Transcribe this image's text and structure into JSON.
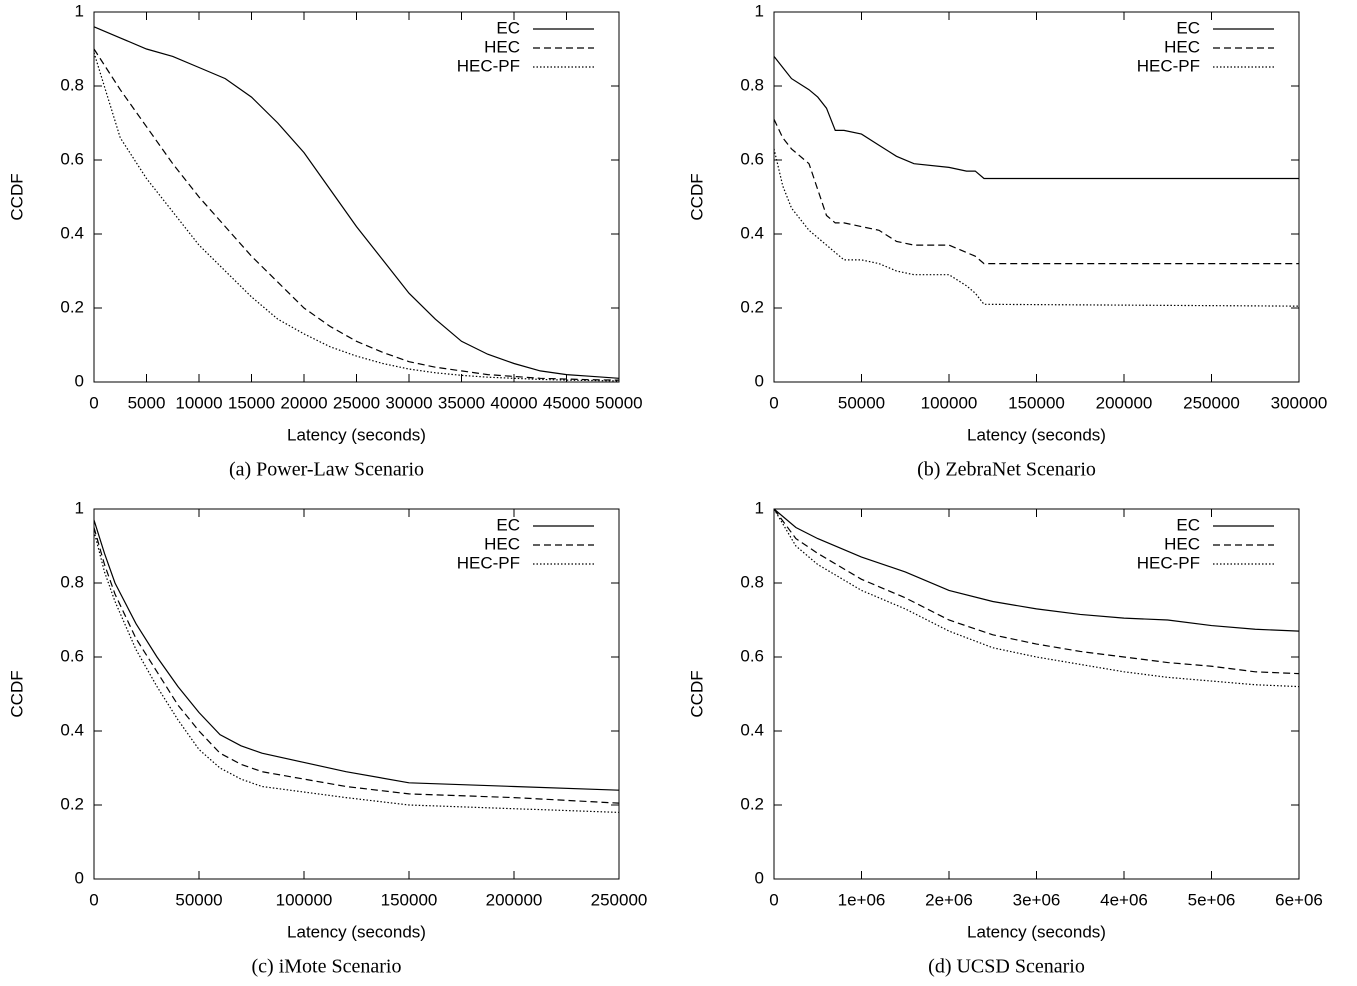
{
  "chart_data": [
    {
      "type": "line",
      "caption": "(a) Power-Law Scenario",
      "xlabel": "Latency (seconds)",
      "ylabel": "CCDF",
      "x": [
        0,
        2500,
        5000,
        7500,
        10000,
        12500,
        15000,
        17500,
        20000,
        22500,
        25000,
        27500,
        30000,
        32500,
        35000,
        37500,
        40000,
        42500,
        45000,
        47500,
        50000
      ],
      "series": [
        {
          "name": "EC",
          "color": "#000000",
          "dash": "solid",
          "values": [
            0.96,
            0.93,
            0.9,
            0.88,
            0.85,
            0.82,
            0.77,
            0.7,
            0.62,
            0.52,
            0.42,
            0.33,
            0.24,
            0.17,
            0.11,
            0.075,
            0.05,
            0.03,
            0.02,
            0.015,
            0.01
          ]
        },
        {
          "name": "HEC",
          "color": "#000000",
          "dash": "dashed",
          "values": [
            0.9,
            0.79,
            0.69,
            0.59,
            0.5,
            0.42,
            0.34,
            0.27,
            0.2,
            0.15,
            0.11,
            0.08,
            0.055,
            0.04,
            0.03,
            0.02,
            0.015,
            0.01,
            0.008,
            0.006,
            0.005
          ]
        },
        {
          "name": "HEC-PF",
          "color": "#000000",
          "dash": "dotted",
          "values": [
            0.89,
            0.66,
            0.55,
            0.46,
            0.37,
            0.3,
            0.23,
            0.17,
            0.13,
            0.095,
            0.07,
            0.05,
            0.035,
            0.025,
            0.018,
            0.013,
            0.01,
            0.007,
            0.005,
            0.004,
            0.003
          ]
        }
      ],
      "xlim": [
        0,
        50000
      ],
      "xticks": [
        0,
        5000,
        10000,
        15000,
        20000,
        25000,
        30000,
        35000,
        40000,
        45000,
        50000
      ],
      "ylim": [
        0,
        1
      ],
      "yticks": [
        0,
        0.2,
        0.4,
        0.6,
        0.8,
        1
      ],
      "legend": "upper right"
    },
    {
      "type": "line",
      "caption": "(b) ZebraNet Scenario",
      "xlabel": "Latency (seconds)",
      "ylabel": "CCDF",
      "x": [
        0,
        5000,
        10000,
        20000,
        25000,
        30000,
        35000,
        40000,
        50000,
        60000,
        70000,
        80000,
        100000,
        110000,
        115000,
        120000,
        300000
      ],
      "series": [
        {
          "name": "EC",
          "color": "#000000",
          "dash": "solid",
          "values": [
            0.88,
            0.85,
            0.82,
            0.79,
            0.77,
            0.74,
            0.68,
            0.68,
            0.67,
            0.64,
            0.61,
            0.59,
            0.58,
            0.57,
            0.57,
            0.55,
            0.55
          ]
        },
        {
          "name": "HEC",
          "color": "#000000",
          "dash": "dashed",
          "values": [
            0.71,
            0.66,
            0.63,
            0.59,
            0.52,
            0.45,
            0.43,
            0.43,
            0.42,
            0.41,
            0.38,
            0.37,
            0.37,
            0.35,
            0.34,
            0.32,
            0.32
          ]
        },
        {
          "name": "HEC-PF",
          "color": "#000000",
          "dash": "dotted",
          "values": [
            0.63,
            0.53,
            0.47,
            0.41,
            0.39,
            0.37,
            0.35,
            0.33,
            0.33,
            0.32,
            0.3,
            0.29,
            0.29,
            0.26,
            0.24,
            0.21,
            0.205
          ]
        }
      ],
      "xlim": [
        0,
        300000
      ],
      "xticks": [
        0,
        50000,
        100000,
        150000,
        200000,
        250000,
        300000
      ],
      "ylim": [
        0,
        1
      ],
      "yticks": [
        0,
        0.2,
        0.4,
        0.6,
        0.8,
        1
      ],
      "legend": "upper right"
    },
    {
      "type": "line",
      "caption": "(c) iMote Scenario",
      "xlabel": "Latency (seconds)",
      "ylabel": "CCDF",
      "x": [
        0,
        5000,
        10000,
        20000,
        30000,
        40000,
        50000,
        60000,
        70000,
        80000,
        100000,
        120000,
        150000,
        200000,
        250000
      ],
      "series": [
        {
          "name": "EC",
          "color": "#000000",
          "dash": "solid",
          "values": [
            0.97,
            0.88,
            0.8,
            0.69,
            0.6,
            0.52,
            0.45,
            0.39,
            0.36,
            0.34,
            0.315,
            0.29,
            0.26,
            0.25,
            0.24
          ]
        },
        {
          "name": "HEC",
          "color": "#000000",
          "dash": "dashed",
          "values": [
            0.95,
            0.85,
            0.77,
            0.65,
            0.56,
            0.47,
            0.4,
            0.34,
            0.31,
            0.29,
            0.27,
            0.25,
            0.23,
            0.22,
            0.205
          ]
        },
        {
          "name": "HEC-PF",
          "color": "#000000",
          "dash": "dotted",
          "values": [
            0.94,
            0.83,
            0.75,
            0.62,
            0.52,
            0.43,
            0.35,
            0.3,
            0.27,
            0.25,
            0.235,
            0.22,
            0.2,
            0.19,
            0.18
          ]
        }
      ],
      "xlim": [
        0,
        250000
      ],
      "xticks": [
        0,
        50000,
        100000,
        150000,
        200000,
        250000
      ],
      "ylim": [
        0,
        1
      ],
      "yticks": [
        0,
        0.2,
        0.4,
        0.6,
        0.8,
        1
      ],
      "legend": "upper right"
    },
    {
      "type": "line",
      "caption": "(d) UCSD Scenario",
      "xlabel": "Latency (seconds)",
      "ylabel": "CCDF",
      "x": [
        0,
        250000,
        500000,
        1000000,
        1500000,
        2000000,
        2500000,
        3000000,
        3500000,
        4000000,
        4500000,
        5000000,
        5500000,
        6000000
      ],
      "series": [
        {
          "name": "EC",
          "color": "#000000",
          "dash": "solid",
          "values": [
            1.0,
            0.95,
            0.92,
            0.87,
            0.83,
            0.78,
            0.75,
            0.73,
            0.715,
            0.705,
            0.7,
            0.685,
            0.675,
            0.67
          ]
        },
        {
          "name": "HEC",
          "color": "#000000",
          "dash": "dashed",
          "values": [
            1.0,
            0.92,
            0.88,
            0.81,
            0.76,
            0.7,
            0.66,
            0.635,
            0.615,
            0.6,
            0.585,
            0.575,
            0.56,
            0.555
          ]
        },
        {
          "name": "HEC-PF",
          "color": "#000000",
          "dash": "dotted",
          "values": [
            1.0,
            0.9,
            0.85,
            0.78,
            0.73,
            0.67,
            0.625,
            0.6,
            0.58,
            0.56,
            0.545,
            0.535,
            0.525,
            0.52
          ]
        }
      ],
      "xlim": [
        0,
        6000000
      ],
      "xticks": [
        0,
        {
          "value": 1000000,
          "label": "1e+06"
        },
        {
          "value": 2000000,
          "label": "2e+06"
        },
        {
          "value": 3000000,
          "label": "3e+06"
        },
        {
          "value": 4000000,
          "label": "4e+06"
        },
        {
          "value": 5000000,
          "label": "5e+06"
        },
        {
          "value": 6000000,
          "label": "6e+06"
        }
      ],
      "ylim": [
        0,
        1
      ],
      "yticks": [
        0,
        0.2,
        0.4,
        0.6,
        0.8,
        1
      ],
      "legend": "upper right"
    }
  ]
}
